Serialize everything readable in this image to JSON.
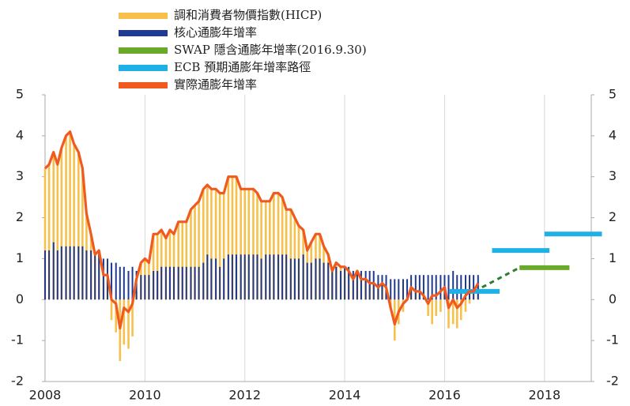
{
  "chart_data": {
    "type": "bar-line",
    "xlim": [
      2008,
      2019
    ],
    "xticks": [
      2008,
      2010,
      2012,
      2014,
      2016,
      2018
    ],
    "ylim": [
      -2,
      5
    ],
    "yticks": [
      -2,
      -1,
      0,
      1,
      2,
      3,
      4,
      5
    ],
    "y2lim": [
      -2,
      5
    ],
    "y2ticks": [
      -2,
      -1,
      0,
      1,
      2,
      3,
      4,
      5
    ],
    "grid": "x",
    "legend": "top",
    "series": [
      {
        "name": "調和消費者物價指數(HICP)",
        "type": "bar",
        "color": "#f7c04a",
        "x": [
          2008,
          2008.08,
          2008.17,
          2008.25,
          2008.33,
          2008.42,
          2008.5,
          2008.58,
          2008.67,
          2008.75,
          2008.83,
          2008.92,
          2009,
          2009.08,
          2009.17,
          2009.25,
          2009.33,
          2009.42,
          2009.5,
          2009.58,
          2009.67,
          2009.75,
          2009.83,
          2009.92,
          2010,
          2010.08,
          2010.17,
          2010.25,
          2010.33,
          2010.42,
          2010.5,
          2010.58,
          2010.67,
          2010.75,
          2010.83,
          2010.92,
          2011,
          2011.08,
          2011.17,
          2011.25,
          2011.33,
          2011.42,
          2011.5,
          2011.58,
          2011.67,
          2011.75,
          2011.83,
          2011.92,
          2012,
          2012.08,
          2012.17,
          2012.25,
          2012.33,
          2012.42,
          2012.5,
          2012.58,
          2012.67,
          2012.75,
          2012.83,
          2012.92,
          2013,
          2013.08,
          2013.17,
          2013.25,
          2013.33,
          2013.42,
          2013.5,
          2013.58,
          2013.67,
          2013.75,
          2013.83,
          2013.92,
          2014,
          2014.08,
          2014.17,
          2014.25,
          2014.33,
          2014.42,
          2014.5,
          2014.58,
          2014.67,
          2014.75,
          2014.83,
          2014.92,
          2015,
          2015.08,
          2015.17,
          2015.25,
          2015.33,
          2015.42,
          2015.5,
          2015.58,
          2015.67,
          2015.75,
          2015.83,
          2015.92,
          2016,
          2016.08,
          2016.17,
          2016.25,
          2016.33,
          2016.42,
          2016.5,
          2016.58,
          2016.67
        ],
        "values": [
          3.2,
          3.3,
          3.6,
          3.3,
          3.7,
          4.0,
          4.1,
          3.8,
          3.6,
          3.2,
          2.1,
          1.6,
          1.1,
          1.2,
          0.6,
          0.6,
          -0.5,
          -0.8,
          -1.5,
          -1.1,
          -1.2,
          -0.9,
          0.2,
          0.9,
          1.0,
          0.9,
          1.6,
          1.6,
          1.7,
          1.5,
          1.7,
          1.6,
          1.9,
          1.9,
          1.9,
          2.2,
          2.3,
          2.4,
          2.7,
          2.8,
          2.7,
          2.7,
          2.6,
          2.6,
          3.0,
          3.0,
          3.0,
          2.7,
          2.7,
          2.7,
          2.7,
          2.6,
          2.4,
          2.4,
          2.4,
          2.6,
          2.6,
          2.5,
          2.2,
          2.2,
          2.0,
          1.8,
          1.7,
          1.2,
          1.4,
          1.6,
          1.6,
          1.3,
          1.1,
          0.7,
          0.9,
          0.8,
          0.8,
          0.7,
          0.5,
          0.7,
          0.5,
          0.5,
          0.4,
          0.4,
          0.3,
          0.4,
          0.3,
          -0.2,
          -1.0,
          -0.6,
          -0.3,
          0.0,
          0.3,
          0.2,
          0.2,
          0.1,
          -0.4,
          -0.6,
          -0.4,
          -0.3,
          0.3,
          -0.7,
          -0.6,
          -0.7,
          -0.5,
          -0.3,
          -0.1,
          0.2,
          0.4
        ]
      },
      {
        "name": "核心通膨年增率",
        "type": "bar",
        "color": "#1f3a8f",
        "x": [
          2008,
          2008.08,
          2008.17,
          2008.25,
          2008.33,
          2008.42,
          2008.5,
          2008.58,
          2008.67,
          2008.75,
          2008.83,
          2008.92,
          2009,
          2009.08,
          2009.17,
          2009.25,
          2009.33,
          2009.42,
          2009.5,
          2009.58,
          2009.67,
          2009.75,
          2009.83,
          2009.92,
          2010,
          2010.08,
          2010.17,
          2010.25,
          2010.33,
          2010.42,
          2010.5,
          2010.58,
          2010.67,
          2010.75,
          2010.83,
          2010.92,
          2011,
          2011.08,
          2011.17,
          2011.25,
          2011.33,
          2011.42,
          2011.5,
          2011.58,
          2011.67,
          2011.75,
          2011.83,
          2011.92,
          2012,
          2012.08,
          2012.17,
          2012.25,
          2012.33,
          2012.42,
          2012.5,
          2012.58,
          2012.67,
          2012.75,
          2012.83,
          2012.92,
          2013,
          2013.08,
          2013.17,
          2013.25,
          2013.33,
          2013.42,
          2013.5,
          2013.58,
          2013.67,
          2013.75,
          2013.83,
          2013.92,
          2014,
          2014.08,
          2014.17,
          2014.25,
          2014.33,
          2014.42,
          2014.5,
          2014.58,
          2014.67,
          2014.75,
          2014.83,
          2014.92,
          2015,
          2015.08,
          2015.17,
          2015.25,
          2015.33,
          2015.42,
          2015.5,
          2015.58,
          2015.67,
          2015.75,
          2015.83,
          2015.92,
          2016,
          2016.08,
          2016.17,
          2016.25,
          2016.33,
          2016.42,
          2016.5,
          2016.58,
          2016.67
        ],
        "values": [
          1.2,
          1.2,
          1.4,
          1.2,
          1.3,
          1.3,
          1.3,
          1.3,
          1.3,
          1.3,
          1.2,
          1.2,
          1.1,
          1.2,
          1.0,
          1.0,
          0.9,
          0.9,
          0.8,
          0.8,
          0.7,
          0.8,
          0.7,
          0.6,
          0.6,
          0.6,
          0.7,
          0.7,
          0.8,
          0.8,
          0.8,
          0.8,
          0.8,
          0.8,
          0.8,
          0.8,
          0.8,
          0.8,
          0.9,
          1.1,
          1.0,
          1.0,
          0.8,
          1.0,
          1.1,
          1.1,
          1.1,
          1.1,
          1.1,
          1.1,
          1.1,
          1.1,
          1.0,
          1.1,
          1.1,
          1.1,
          1.1,
          1.1,
          1.1,
          1.0,
          1.0,
          1.0,
          1.1,
          0.9,
          0.9,
          1.0,
          1.0,
          0.9,
          0.9,
          0.8,
          0.8,
          0.7,
          0.8,
          0.8,
          0.7,
          0.7,
          0.7,
          0.7,
          0.7,
          0.7,
          0.6,
          0.6,
          0.6,
          0.5,
          0.5,
          0.5,
          0.5,
          0.5,
          0.6,
          0.6,
          0.6,
          0.6,
          0.6,
          0.6,
          0.6,
          0.6,
          0.6,
          0.6,
          0.7,
          0.6,
          0.6,
          0.6,
          0.6,
          0.6,
          0.6
        ]
      },
      {
        "name": "SWAP 隱含通膨年增率(2016.9.30)",
        "type": "line",
        "color": "#6aaa2a",
        "dash_color": "#2e7d32",
        "dashed_segments": [
          0
        ],
        "x": [
          2016.75,
          2017.5,
          2018.5
        ],
        "values": [
          0.3,
          0.78,
          0.78
        ]
      },
      {
        "name": "ECB 預期通膨年增率路徑",
        "type": "line",
        "color": "#1fb0e6",
        "x": [
          2016.1,
          2017.1,
          2017.1,
          2016.95,
          2018.1,
          2018.1,
          2018.0,
          2019.15
        ],
        "values": [
          0.2,
          0.2,
          null,
          1.2,
          1.2,
          null,
          1.6,
          1.6
        ]
      },
      {
        "name": "實際通膨年增率",
        "type": "line",
        "color": "#f05a1e",
        "x": [
          2008,
          2008.08,
          2008.17,
          2008.25,
          2008.33,
          2008.42,
          2008.5,
          2008.58,
          2008.67,
          2008.75,
          2008.83,
          2008.92,
          2009,
          2009.08,
          2009.17,
          2009.25,
          2009.33,
          2009.42,
          2009.5,
          2009.58,
          2009.67,
          2009.75,
          2009.83,
          2009.92,
          2010,
          2010.08,
          2010.17,
          2010.25,
          2010.33,
          2010.42,
          2010.5,
          2010.58,
          2010.67,
          2010.75,
          2010.83,
          2010.92,
          2011,
          2011.08,
          2011.17,
          2011.25,
          2011.33,
          2011.42,
          2011.5,
          2011.58,
          2011.67,
          2011.75,
          2011.83,
          2011.92,
          2012,
          2012.08,
          2012.17,
          2012.25,
          2012.33,
          2012.42,
          2012.5,
          2012.58,
          2012.67,
          2012.75,
          2012.83,
          2012.92,
          2013,
          2013.08,
          2013.17,
          2013.25,
          2013.33,
          2013.42,
          2013.5,
          2013.58,
          2013.67,
          2013.75,
          2013.83,
          2013.92,
          2014,
          2014.08,
          2014.17,
          2014.25,
          2014.33,
          2014.42,
          2014.5,
          2014.58,
          2014.67,
          2014.75,
          2014.83,
          2014.92,
          2015,
          2015.08,
          2015.17,
          2015.25,
          2015.33,
          2015.42,
          2015.5,
          2015.58,
          2015.67,
          2015.75,
          2015.83,
          2015.92,
          2016,
          2016.08,
          2016.17,
          2016.25,
          2016.33,
          2016.42,
          2016.5,
          2016.58,
          2016.67
        ],
        "values": [
          3.2,
          3.3,
          3.6,
          3.3,
          3.7,
          4.0,
          4.1,
          3.8,
          3.6,
          3.2,
          2.1,
          1.6,
          1.1,
          1.2,
          0.6,
          0.6,
          0.0,
          -0.1,
          -0.7,
          -0.2,
          -0.3,
          -0.1,
          0.5,
          0.9,
          1.0,
          0.9,
          1.6,
          1.6,
          1.7,
          1.5,
          1.7,
          1.6,
          1.9,
          1.9,
          1.9,
          2.2,
          2.3,
          2.4,
          2.7,
          2.8,
          2.7,
          2.7,
          2.6,
          2.6,
          3.0,
          3.0,
          3.0,
          2.7,
          2.7,
          2.7,
          2.7,
          2.6,
          2.4,
          2.4,
          2.4,
          2.6,
          2.6,
          2.5,
          2.2,
          2.2,
          2.0,
          1.8,
          1.7,
          1.2,
          1.4,
          1.6,
          1.6,
          1.3,
          1.1,
          0.7,
          0.9,
          0.8,
          0.8,
          0.7,
          0.5,
          0.7,
          0.5,
          0.5,
          0.4,
          0.4,
          0.3,
          0.4,
          0.3,
          -0.2,
          -0.6,
          -0.3,
          -0.1,
          0.0,
          0.3,
          0.2,
          0.2,
          0.1,
          -0.1,
          0.1,
          0.1,
          0.2,
          0.3,
          -0.2,
          0.0,
          -0.2,
          -0.1,
          0.1,
          0.2,
          0.2,
          0.4
        ]
      }
    ]
  }
}
